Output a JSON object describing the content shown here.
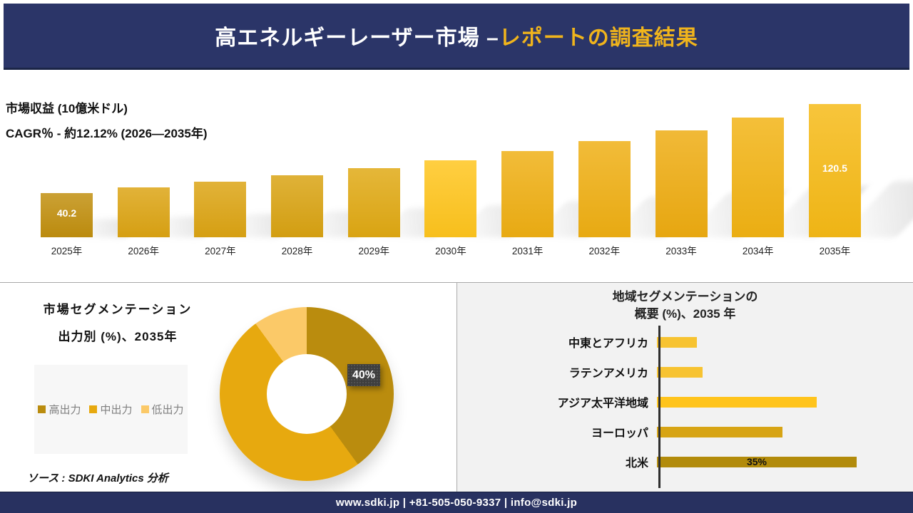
{
  "header": {
    "title_main": "高エネルギーレーザー市場 –",
    "title_accent": "レポートの調査結果"
  },
  "revenue": {
    "title": "市場収益 (10億米ドル)",
    "subtitle": "CAGR％ - 約12.12% (2026―2035年)"
  },
  "segmentation": {
    "title_line1": "市場セグメンテーション",
    "title_line2": "出力別 (%)、2035年",
    "center_label": "40%"
  },
  "regional": {
    "title_line1": "地域セグメンテーションの",
    "title_line2": "概要 (%)、2035 年"
  },
  "source_text": "ソース : SDKI Analytics 分析",
  "footer_text": "www.sdki.jp | +81-505-050-9337 | info@sdki.jp",
  "colors": {
    "navy_header": "#2B3568",
    "navy_footer": "#283160",
    "accent_yellow": "#F0B41C",
    "panel_gray": "#F2F2F2",
    "legend_gray_text": "#808080"
  },
  "chart_data": [
    {
      "name": "market-revenue",
      "type": "bar",
      "title": "市場収益 (10億米ドル)",
      "subtitle": "CAGR％ - 約12.12% (2026―2035年)",
      "categories": [
        "2025年",
        "2026年",
        "2027年",
        "2028年",
        "2029年",
        "2030年",
        "2031年",
        "2032年",
        "2033年",
        "2034年",
        "2035年"
      ],
      "values": [
        40.2,
        44.9,
        50.1,
        55.9,
        62.4,
        69.7,
        77.8,
        86.8,
        96.9,
        108.1,
        120.5
      ],
      "data_labels": {
        "0": "40.2",
        "10": "120.5"
      },
      "bar_colors": [
        "#C18F0E",
        "#DCA413",
        "#DCA413",
        "#D9A312",
        "#E0A913",
        "#FFC51D",
        "#EFAF13",
        "#EFAF13",
        "#EEAC11",
        "#F2B313",
        "#F6BA16"
      ],
      "ylabel": "10億米ドル",
      "grid": false,
      "ylim": [
        0,
        130
      ]
    },
    {
      "name": "power-segmentation",
      "type": "pie",
      "style": "donut",
      "title": "市場セグメンテーション 出力別 (%)、2035年",
      "labels": [
        "高出力",
        "中出力",
        "低出力"
      ],
      "values": [
        40,
        50,
        10
      ],
      "colors": [
        "#BA8C0E",
        "#E7A90F",
        "#FBC968"
      ],
      "data_labels": {
        "0": "40%"
      },
      "legend_position": "left"
    },
    {
      "name": "regional-segmentation",
      "type": "bar",
      "orientation": "horizontal",
      "title": "地域セグメンテーションの 概要 (%)、2035 年",
      "categories": [
        "中東とアフリカ",
        "ラテンアメリカ",
        "アジア太平洋地域",
        "ヨーロッパ",
        "北米"
      ],
      "values": [
        7,
        8,
        28,
        22,
        35
      ],
      "colors": [
        "#F7C331",
        "#F7C331",
        "#FFC41C",
        "#D7A414",
        "#B28B0B"
      ],
      "data_labels": {
        "4": "35%"
      },
      "xlim": [
        0,
        40
      ],
      "grid": false
    }
  ]
}
